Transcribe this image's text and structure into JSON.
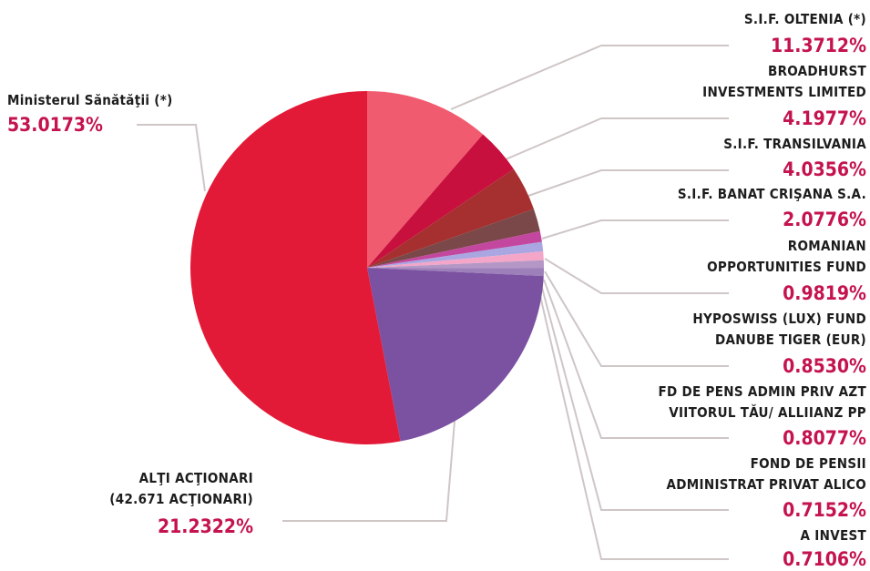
{
  "chart_data": {
    "type": "pie",
    "categories": [
      "S.I.F. OLTENIA (*)",
      "BROADHURST\nINVESTMENTS LIMITED",
      "S.I.F. TRANSILVANIA",
      "S.I.F. BANAT CRIŞANA S.A.",
      "ROMANIAN\nOPPORTUNITIES FUND",
      "HYPOSWISS (LUX) FUND\nDANUBE TIGER (EUR)",
      "FD DE PENS ADMIN PRIV AZT\nVIITORUL TĂU/ ALLIIANZ PP",
      "FOND DE PENSII\nADMINISTRAT PRIVAT ALICO",
      "A INVEST",
      "ALŢI ACŢIONARI\n(42.671 ACŢIONARI)",
      "Ministerul Sănătăţii (*)"
    ],
    "values": [
      11.3712,
      4.1977,
      4.0356,
      2.0776,
      0.9819,
      0.853,
      0.8077,
      0.7152,
      0.7106,
      21.2322,
      53.0173
    ],
    "value_labels": [
      "11.3712%",
      "4.1977%",
      "4.0356%",
      "2.0776%",
      "0.9819%",
      "0.8530%",
      "0.8077%",
      "0.7152%",
      "0.7106%",
      "21.2322%",
      "53.0173%"
    ],
    "colors": [
      "#f15b6f",
      "#c8103e",
      "#a6302f",
      "#7a4848",
      "#c4479f",
      "#a9a6e2",
      "#f3a6c8",
      "#b597c6",
      "#9d7fb9",
      "#7b51a1",
      "#e31a37"
    ]
  }
}
